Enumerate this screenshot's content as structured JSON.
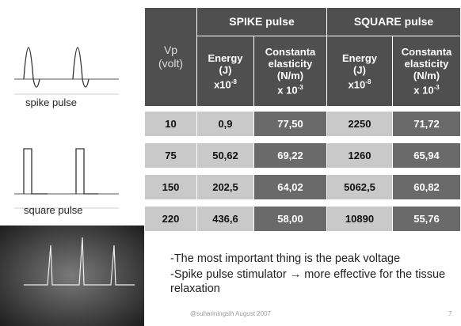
{
  "figures": {
    "spike_label": "spike pulse",
    "square_label": "square pulse"
  },
  "table": {
    "groups": [
      "SPIKE pulse",
      "SQUARE pulse"
    ],
    "columns": [
      {
        "lines": [
          "Vp",
          "(volt)"
        ]
      },
      {
        "lines": [
          "Energy",
          "(J)"
        ],
        "mult": "x10",
        "exp": "-8"
      },
      {
        "lines": [
          "Constanta",
          "elasticity",
          "(N/m)"
        ],
        "mult": "x 10",
        "exp": "-3"
      },
      {
        "lines": [
          "Energy",
          "(J)"
        ],
        "mult": "x10",
        "exp": "-8"
      },
      {
        "lines": [
          "Constanta",
          "elasticity",
          "(N/m)"
        ],
        "mult": "x 10",
        "exp": "-3"
      }
    ],
    "rows": [
      [
        "10",
        "0,9",
        "77,50",
        "2250",
        "71,72"
      ],
      [
        "75",
        "50,62",
        "69,22",
        "1260",
        "65,94"
      ],
      [
        "150",
        "202,5",
        "64,02",
        "5062,5",
        "60,82"
      ],
      [
        "220",
        "436,6",
        "58,00",
        "10890",
        "55,76"
      ]
    ]
  },
  "bullets": [
    "-The most important thing is the peak voltage",
    "-Spike pulse stimulator → more effective for the tissue relaxation"
  ],
  "footer": {
    "author": "@suhariningsih August 2007",
    "page": "7"
  }
}
